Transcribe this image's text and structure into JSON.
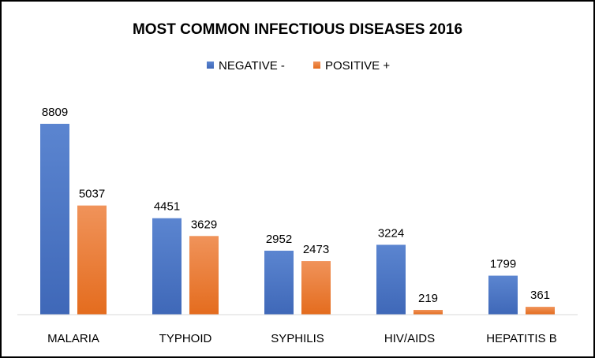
{
  "chart_data": {
    "type": "bar",
    "title": "MOST COMMON INFECTIOUS DISEASES 2016",
    "categories": [
      "MALARIA",
      "TYPHOID",
      "SYPHILIS",
      "HIV/AIDS",
      "HEPATITIS B"
    ],
    "series": [
      {
        "name": "NEGATIVE -",
        "values": [
          8809,
          4451,
          2952,
          3224,
          1799
        ],
        "color": "#4472C4"
      },
      {
        "name": "POSITIVE +",
        "values": [
          5037,
          3629,
          2473,
          219,
          361
        ],
        "color": "#ED7D31"
      }
    ],
    "ylim": [
      0,
      8809
    ],
    "legend_position": "top",
    "grid": false
  }
}
